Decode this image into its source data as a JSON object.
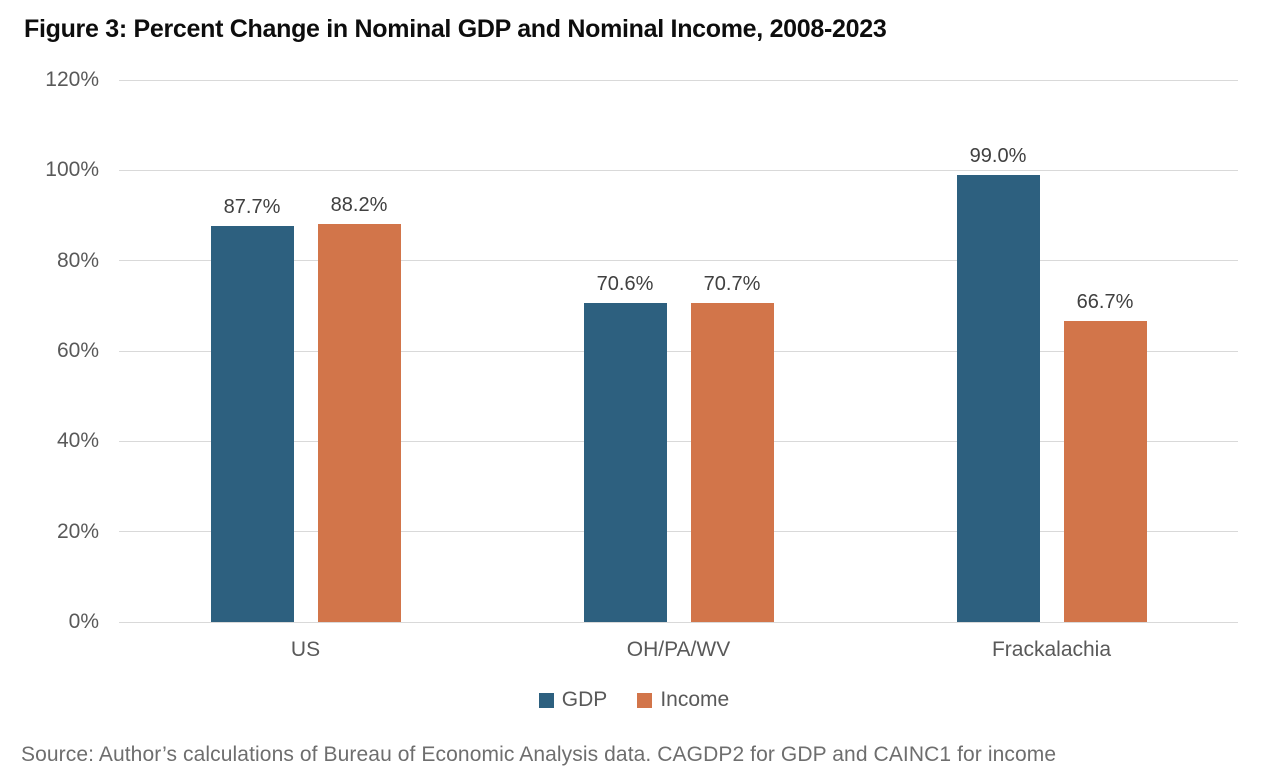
{
  "figure": {
    "title": "Figure 3: Percent Change in Nominal GDP and Nominal Income, 2008-2023",
    "source": "Source: Author’s calculations of Bureau of Economic Analysis data. CAGDP2 for GDP and CAINC1 for income"
  },
  "colors": {
    "gdp": "#2D607F",
    "income": "#D2754A",
    "gridline": "#D9D9D9",
    "axis_text": "#595959",
    "value_text": "#404040",
    "title_text": "#0D0D0D",
    "source_text": "#6E6E6E"
  },
  "chart_data": {
    "type": "bar",
    "title": "Figure 3: Percent Change in Nominal GDP and Nominal Income, 2008-2023",
    "categories": [
      "US",
      "OH/PA/WV",
      "Frackalachia"
    ],
    "series": [
      {
        "name": "GDP",
        "color": "#2D607F",
        "values": [
          87.7,
          70.6,
          99.0
        ],
        "labels": [
          "87.7%",
          "70.6%",
          "99.0%"
        ]
      },
      {
        "name": "Income",
        "color": "#D2754A",
        "values": [
          88.2,
          70.7,
          66.7
        ],
        "labels": [
          "88.2%",
          "70.7%",
          "66.7%"
        ]
      }
    ],
    "xlabel": "",
    "ylabel": "",
    "ylim": [
      0,
      120
    ],
    "yticks": [
      0,
      20,
      40,
      60,
      80,
      100,
      120
    ],
    "ytick_labels": [
      "0%",
      "20%",
      "40%",
      "60%",
      "80%",
      "100%",
      "120%"
    ],
    "grid": true,
    "legend_position": "bottom"
  }
}
